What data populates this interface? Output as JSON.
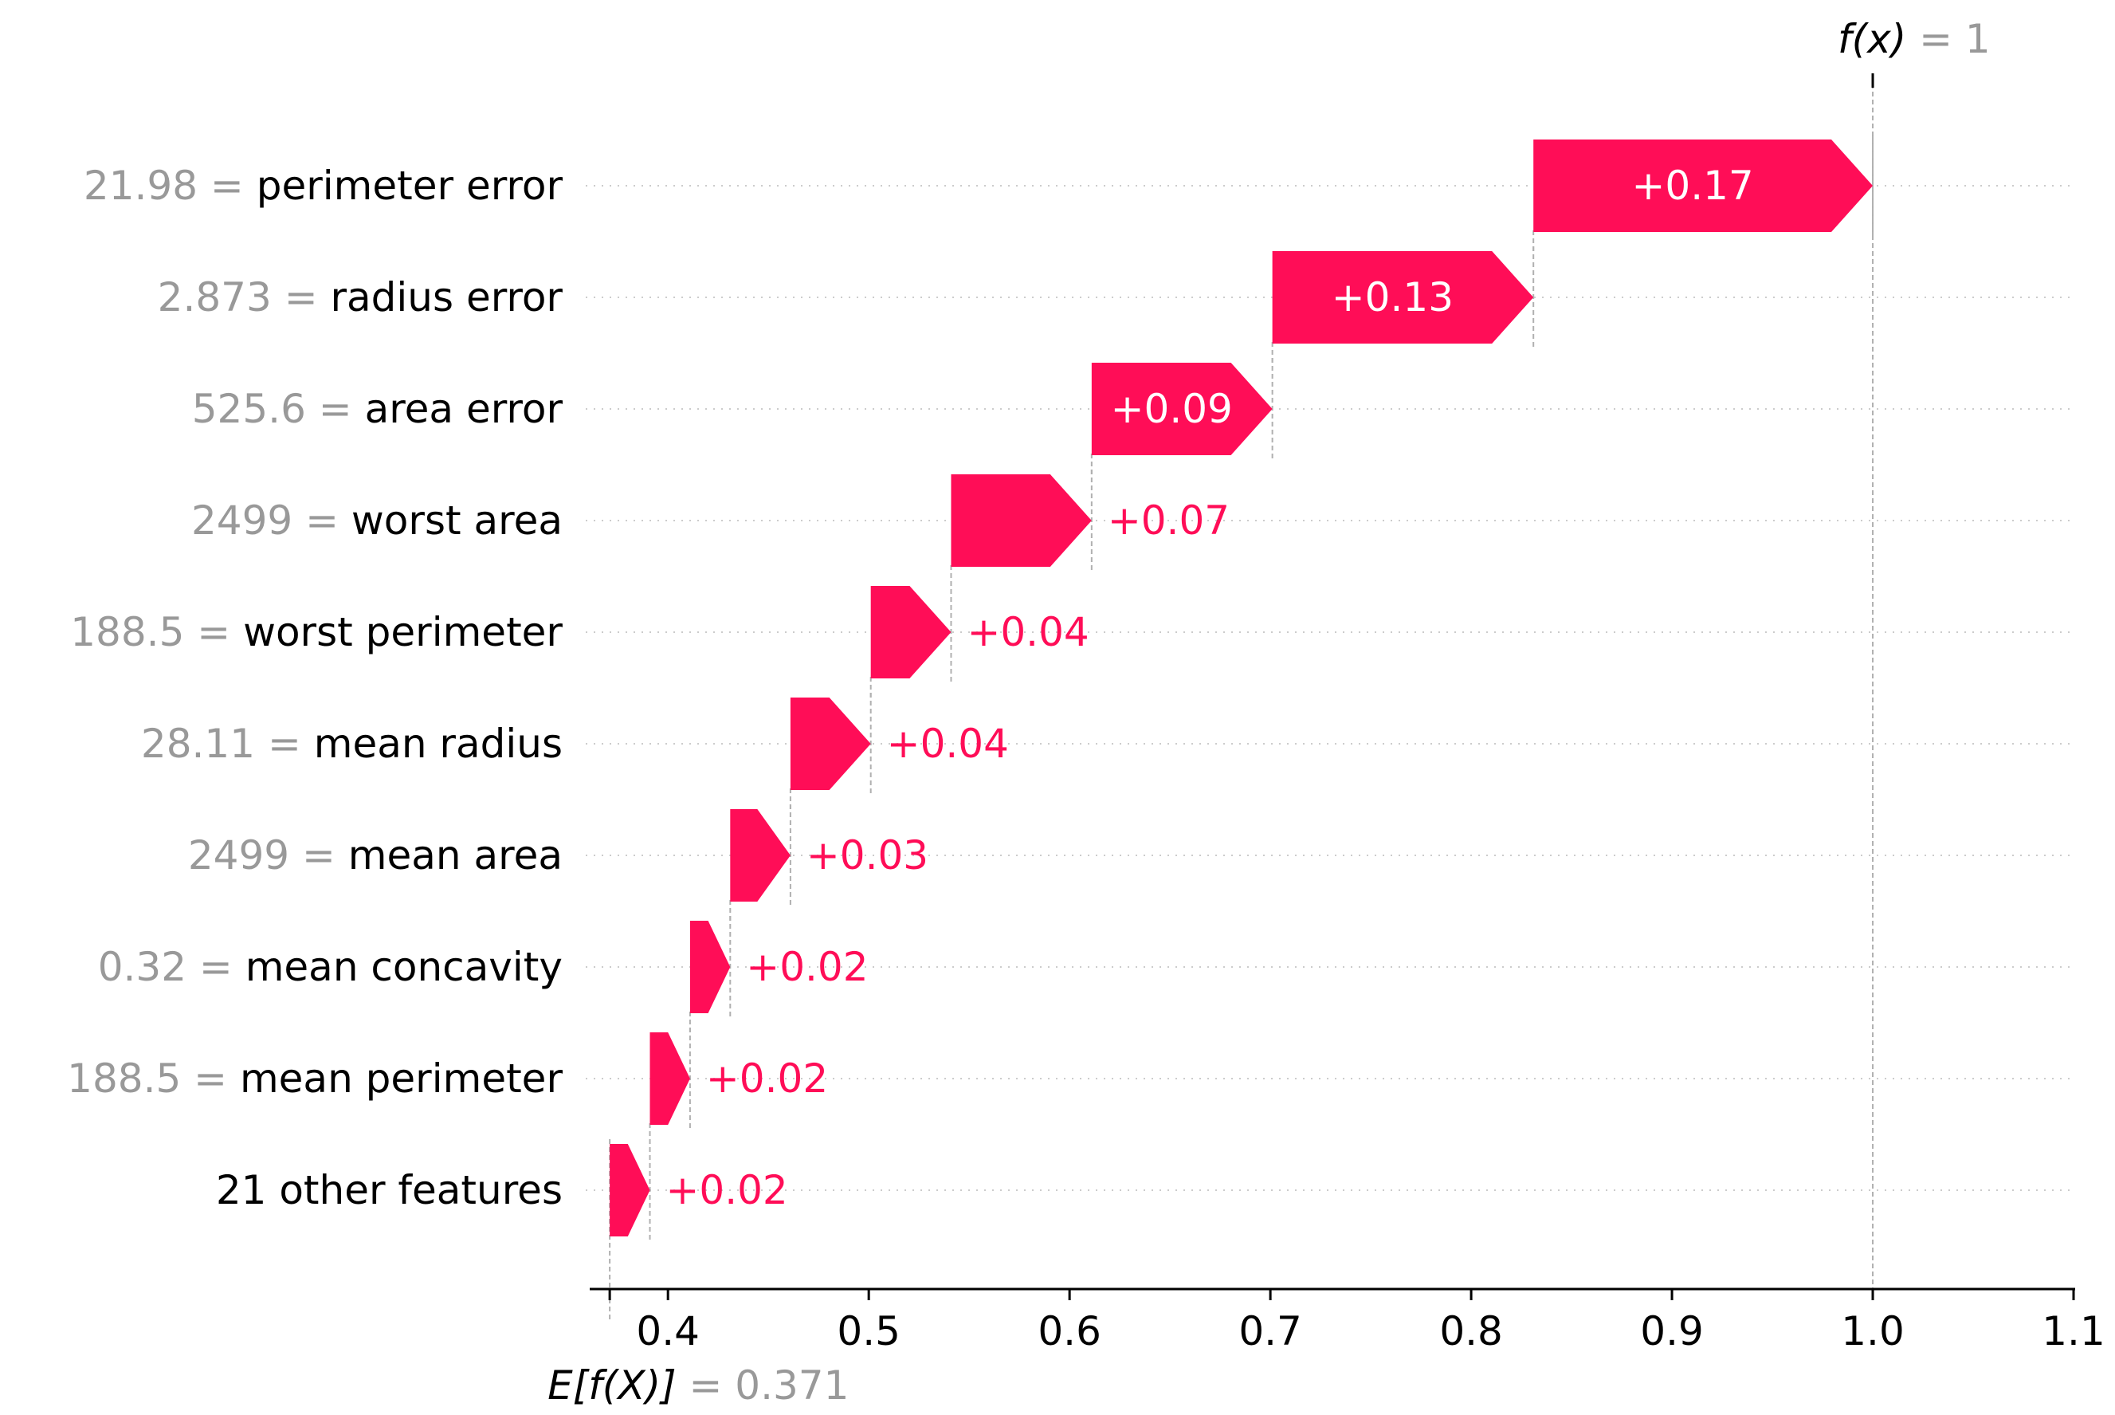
{
  "chart_data": {
    "type": "waterfall",
    "title": "",
    "xlabel": "",
    "ylabel": "",
    "xlim": [
      0.365,
      1.1
    ],
    "x_ticks": [
      "0.4",
      "0.5",
      "0.6",
      "0.7",
      "0.8",
      "0.9",
      "1.0",
      "1.1"
    ],
    "base_value": 0.371,
    "output_value": 1,
    "output_label": {
      "fx": "f(x)",
      "eq": " = ",
      "value": "1"
    },
    "base_label": {
      "efx": "E[f(X)]",
      "eq": " = ",
      "value": "0.371"
    },
    "positive_color": "#ff0d57",
    "grid": "dotted horizontal row lines",
    "features": [
      {
        "value": "21.98",
        "eq": " = ",
        "name": "perimeter error",
        "contribution": 0.17,
        "label": "+0.17"
      },
      {
        "value": "2.873",
        "eq": " = ",
        "name": "radius error",
        "contribution": 0.13,
        "label": "+0.13"
      },
      {
        "value": "525.6",
        "eq": " = ",
        "name": "area error",
        "contribution": 0.09,
        "label": "+0.09"
      },
      {
        "value": "2499",
        "eq": " = ",
        "name": "worst area",
        "contribution": 0.07,
        "label": "+0.07"
      },
      {
        "value": "188.5",
        "eq": " = ",
        "name": "worst perimeter",
        "contribution": 0.04,
        "label": "+0.04"
      },
      {
        "value": "28.11",
        "eq": " = ",
        "name": "mean radius",
        "contribution": 0.04,
        "label": "+0.04"
      },
      {
        "value": "2499",
        "eq": " = ",
        "name": "mean area",
        "contribution": 0.03,
        "label": "+0.03"
      },
      {
        "value": "0.32",
        "eq": " = ",
        "name": "mean concavity",
        "contribution": 0.02,
        "label": "+0.02"
      },
      {
        "value": "188.5",
        "eq": " = ",
        "name": "mean perimeter",
        "contribution": 0.02,
        "label": "+0.02"
      },
      {
        "value": "",
        "eq": "",
        "name": "21 other features",
        "contribution": 0.02,
        "label": "+0.02"
      }
    ]
  }
}
